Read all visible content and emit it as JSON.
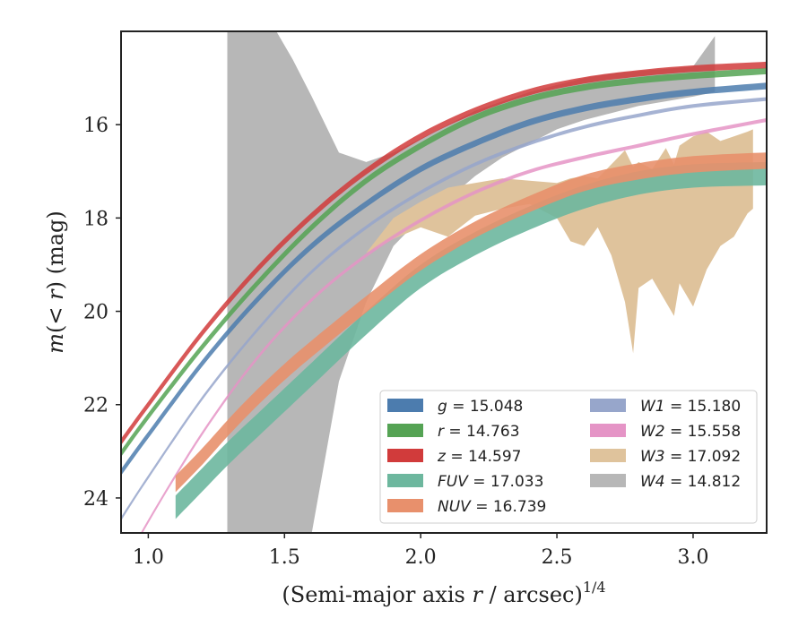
{
  "chart_data": {
    "type": "line",
    "xlabel": "(Semi-major axis r / arcsec)^1/4",
    "ylabel": "m(< r) (mag)",
    "xlim": [
      0.9,
      3.27
    ],
    "ylim": [
      24.75,
      14.0
    ],
    "y_inverted": true,
    "xticks": [
      "1.0",
      "1.5",
      "2.0",
      "2.5",
      "3.0"
    ],
    "yticks": [
      "16",
      "18",
      "20",
      "22",
      "24"
    ],
    "grid": false,
    "legend": {
      "placement": "lower-right",
      "columns": 2
    },
    "series": [
      {
        "name": "g = 15.048",
        "color": "#4c7cae",
        "kind": "curve",
        "x": [
          0.9,
          1.0,
          1.2,
          1.4,
          1.6,
          1.8,
          2.0,
          2.2,
          2.4,
          2.6,
          2.8,
          3.0,
          3.27
        ],
        "y": [
          23.45,
          22.65,
          21.1,
          19.75,
          18.6,
          17.7,
          16.95,
          16.4,
          15.95,
          15.65,
          15.45,
          15.3,
          15.17
        ],
        "width": 0.14
      },
      {
        "name": "r = 14.763",
        "color": "#55a354",
        "kind": "curve",
        "x": [
          0.9,
          1.0,
          1.2,
          1.4,
          1.6,
          1.8,
          2.0,
          2.2,
          2.4,
          2.6,
          2.8,
          3.0,
          3.27
        ],
        "y": [
          23.05,
          22.25,
          20.75,
          19.4,
          18.2,
          17.2,
          16.45,
          15.85,
          15.45,
          15.2,
          15.05,
          14.95,
          14.85
        ],
        "width": 0.14
      },
      {
        "name": "z = 14.597",
        "color": "#d13b3b",
        "kind": "curve",
        "x": [
          0.9,
          1.0,
          1.2,
          1.4,
          1.6,
          1.8,
          2.0,
          2.2,
          2.4,
          2.6,
          2.8,
          3.0,
          3.27
        ],
        "y": [
          22.8,
          22.0,
          20.45,
          19.1,
          17.95,
          17.0,
          16.25,
          15.7,
          15.3,
          15.05,
          14.9,
          14.8,
          14.72
        ],
        "width": 0.14
      },
      {
        "name": "FUV = 17.033",
        "color": "#6db79e",
        "kind": "curve",
        "x": [
          1.1,
          1.2,
          1.3,
          1.4,
          1.5,
          1.6,
          1.8,
          2.0,
          2.2,
          2.4,
          2.6,
          2.8,
          3.0,
          3.27
        ],
        "y": [
          24.2,
          23.6,
          23.0,
          22.45,
          21.9,
          21.35,
          20.25,
          19.25,
          18.55,
          18.0,
          17.55,
          17.25,
          17.1,
          17.05
        ],
        "width": 0.5
      },
      {
        "name": "NUV = 16.739",
        "color": "#e8906c",
        "kind": "curve",
        "x": [
          1.1,
          1.2,
          1.3,
          1.4,
          1.5,
          1.6,
          1.8,
          2.0,
          2.2,
          2.4,
          2.6,
          2.8,
          3.0,
          3.27
        ],
        "y": [
          23.7,
          23.1,
          22.45,
          21.85,
          21.3,
          20.8,
          19.85,
          18.95,
          18.25,
          17.7,
          17.25,
          17.0,
          16.85,
          16.77
        ],
        "width": 0.35
      },
      {
        "name": "W1 = 15.180",
        "color": "#97a6cb",
        "kind": "curve",
        "x": [
          0.9,
          1.0,
          1.2,
          1.4,
          1.6,
          1.8,
          2.0,
          2.2,
          2.4,
          2.6,
          2.8,
          3.0,
          3.27
        ],
        "y": [
          24.45,
          23.55,
          21.85,
          20.4,
          19.15,
          18.2,
          17.45,
          16.85,
          16.4,
          16.05,
          15.8,
          15.6,
          15.45
        ],
        "width": 0.08
      },
      {
        "name": "W2 = 15.558",
        "color": "#e594c6",
        "kind": "curve",
        "x": [
          0.9,
          1.0,
          1.2,
          1.4,
          1.6,
          1.8,
          2.0,
          2.2,
          2.4,
          2.6,
          2.8,
          3.0,
          3.27
        ],
        "y": [
          25.6,
          24.5,
          22.6,
          21.0,
          19.75,
          18.8,
          18.05,
          17.45,
          17.0,
          16.7,
          16.45,
          16.2,
          15.9
        ],
        "width": 0.08
      },
      {
        "name": "W3 = 17.092",
        "color": "#dfc39c",
        "kind": "band",
        "x": [
          0.9,
          1.0,
          1.2,
          1.4,
          1.6,
          1.8,
          1.9,
          2.0,
          2.1,
          2.2,
          2.3,
          2.4,
          2.5,
          2.55,
          2.6,
          2.65,
          2.7,
          2.75,
          2.78,
          2.8,
          2.85,
          2.9,
          2.93,
          2.95,
          3.0,
          3.05,
          3.1,
          3.15,
          3.2,
          3.22
        ],
        "y_lo": [
          23.7,
          23.0,
          21.75,
          20.6,
          19.6,
          18.75,
          18.45,
          18.2,
          18.4,
          17.95,
          17.8,
          17.7,
          18.0,
          18.5,
          18.6,
          18.2,
          18.8,
          19.8,
          20.9,
          19.5,
          19.3,
          19.8,
          20.1,
          19.4,
          19.9,
          19.1,
          18.6,
          18.4,
          17.9,
          17.8
        ],
        "y_hi": [
          23.7,
          23.0,
          21.75,
          20.6,
          19.6,
          18.75,
          18.0,
          17.65,
          17.35,
          17.25,
          17.15,
          17.2,
          17.25,
          17.15,
          17.1,
          17.15,
          16.85,
          16.55,
          16.9,
          16.8,
          16.95,
          16.5,
          16.85,
          16.45,
          16.25,
          16.15,
          16.35,
          16.25,
          16.15,
          16.1
        ]
      },
      {
        "name": "W4 = 14.812",
        "color": "#b7b7b7",
        "kind": "band",
        "x": [
          1.29,
          1.41,
          1.47,
          1.53,
          1.6,
          1.7,
          1.8,
          1.9,
          2.0,
          2.1,
          2.2,
          2.3,
          2.4,
          2.5,
          2.6,
          2.7,
          2.8,
          2.9,
          3.0,
          3.08
        ],
        "y_lo": [
          24.75,
          24.75,
          24.75,
          24.75,
          24.75,
          21.5,
          19.8,
          18.6,
          18.0,
          17.6,
          17.1,
          16.7,
          16.4,
          16.1,
          15.9,
          15.75,
          15.6,
          15.5,
          15.4,
          15.3
        ],
        "y_hi": [
          14.0,
          14.0,
          14.0,
          14.6,
          15.4,
          16.6,
          16.8,
          16.6,
          16.3,
          16.0,
          15.7,
          15.5,
          15.3,
          15.15,
          15.0,
          14.9,
          14.85,
          14.8,
          14.75,
          14.1
        ]
      }
    ]
  }
}
